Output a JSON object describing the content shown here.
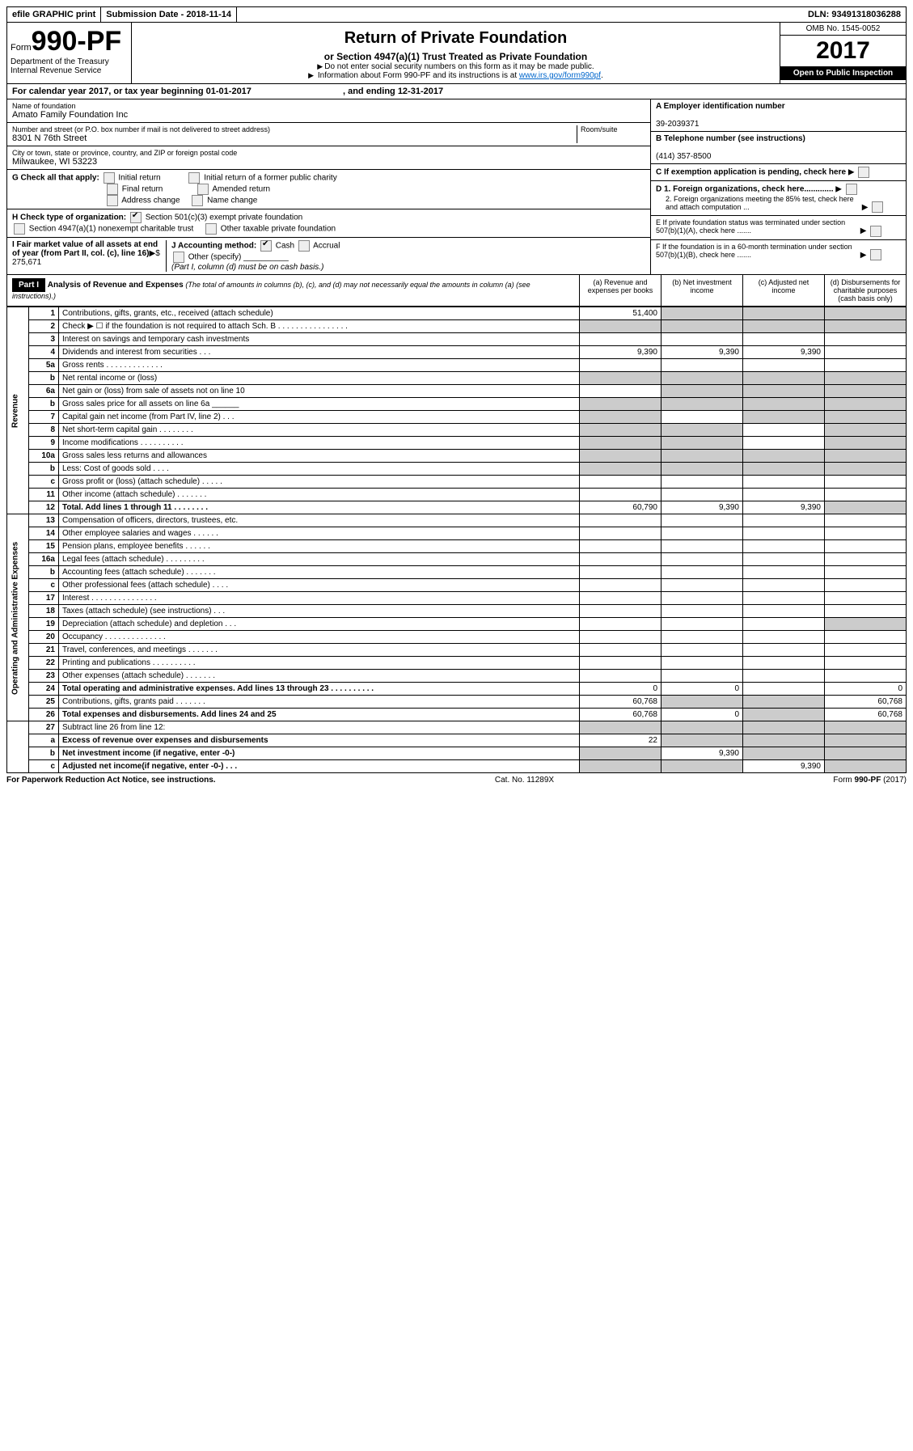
{
  "top": {
    "efile": "efile GRAPHIC print",
    "submission": "Submission Date - 2018-11-14",
    "dln": "DLN: 93491318036288"
  },
  "header": {
    "form_word": "Form",
    "form_no": "990-PF",
    "dept": "Department of the Treasury",
    "irs": "Internal Revenue Service",
    "title": "Return of Private Foundation",
    "sub": "or Section 4947(a)(1) Trust Treated as Private Foundation",
    "note1": "Do not enter social security numbers on this form as it may be made public.",
    "note2_pre": "Information about Form 990-PF and its instructions is at ",
    "note2_link": "www.irs.gov/form990pf",
    "omb": "OMB No. 1545-0052",
    "year": "2017",
    "open": "Open to Public Inspection"
  },
  "cal": "For calendar year 2017, or tax year beginning 01-01-2017",
  "cal_end": ", and ending 12-31-2017",
  "foundation": {
    "name_lbl": "Name of foundation",
    "name": "Amato Family Foundation Inc",
    "addr_lbl": "Number and street (or P.O. box number if mail is not delivered to street address)",
    "addr": "8301 N 76th Street",
    "room_lbl": "Room/suite",
    "city_lbl": "City or town, state or province, country, and ZIP or foreign postal code",
    "city": "Milwaukee, WI  53223"
  },
  "right": {
    "a_lbl": "A Employer identification number",
    "a_val": "39-2039371",
    "b_lbl": "B Telephone number (see instructions)",
    "b_val": "(414) 357-8500",
    "c_lbl": "C If exemption application is pending, check here",
    "d1": "D 1. Foreign organizations, check here.............",
    "d2": "2. Foreign organizations meeting the 85% test, check here and attach computation ...",
    "e": "E  If private foundation status was terminated under section 507(b)(1)(A), check here .......",
    "f": "F  If the foundation is in a 60-month termination under section 507(b)(1)(B), check here .......",
    "h_lbl": "H Check type of organization:",
    "h1": "Section 501(c)(3) exempt private foundation",
    "h2": "Section 4947(a)(1) nonexempt charitable trust",
    "h3": "Other taxable private foundation",
    "g_lbl": "G Check all that apply:",
    "g_opts": {
      "initial": "Initial return",
      "initial_former": "Initial return of a former public charity",
      "final": "Final return",
      "amended": "Amended return",
      "addr_change": "Address change",
      "name_change": "Name change"
    },
    "i_lbl": "I Fair market value of all assets at end of year (from Part II, col. (c), line 16)",
    "i_val": "$  275,671",
    "j_lbl": "J Accounting method:",
    "j_cash": "Cash",
    "j_accrual": "Accrual",
    "j_other": "Other (specify)",
    "j_note": "(Part I, column (d) must be on cash basis.)"
  },
  "part1": {
    "hdr": "Part I",
    "title": "Analysis of Revenue and Expenses",
    "note": "(The total of amounts in columns (b), (c), and (d) may not necessarily equal the amounts in column (a) (see instructions).)",
    "col_a": "(a)   Revenue and expenses per books",
    "col_b": "(b)  Net investment income",
    "col_c": "(c)  Adjusted net income",
    "col_d": "(d)  Disbursements for charitable purposes (cash basis only)"
  },
  "rev_label": "Revenue",
  "exp_label": "Operating and Administrative Expenses",
  "rows": {
    "r1": {
      "n": "1",
      "desc": "Contributions, gifts, grants, etc., received (attach schedule)",
      "a": "51,400"
    },
    "r2": {
      "n": "2",
      "desc": "Check ▶ ☐ if the foundation is not required to attach Sch. B    .  .  .  .  .  .  .  .  .  .  .  .  .  .  .  ."
    },
    "r3": {
      "n": "3",
      "desc": "Interest on savings and temporary cash investments"
    },
    "r4": {
      "n": "4",
      "desc": "Dividends and interest from securities   .  .  .",
      "a": "9,390",
      "b": "9,390",
      "c": "9,390"
    },
    "r5a": {
      "n": "5a",
      "desc": "Gross rents  .  .  .  .  .  .  .  .  .  .  .  .  ."
    },
    "r5b": {
      "n": "b",
      "desc": "Net rental income or (loss)"
    },
    "r6a": {
      "n": "6a",
      "desc": "Net gain or (loss) from sale of assets not on line 10"
    },
    "r6b": {
      "n": "b",
      "desc": "Gross sales price for all assets on line 6a ______"
    },
    "r7": {
      "n": "7",
      "desc": "Capital gain net income (from Part IV, line 2)  .  .  ."
    },
    "r8": {
      "n": "8",
      "desc": "Net short-term capital gain  .  .  .  .  .  .  .  ."
    },
    "r9": {
      "n": "9",
      "desc": "Income modifications  .  .  .  .  .  .  .  .  .  ."
    },
    "r10a": {
      "n": "10a",
      "desc": "Gross sales less returns and allowances"
    },
    "r10b": {
      "n": "b",
      "desc": "Less: Cost of goods sold  .  .  .  ."
    },
    "r10c": {
      "n": "c",
      "desc": "Gross profit or (loss) (attach schedule)  .  .  .  .  ."
    },
    "r11": {
      "n": "11",
      "desc": "Other income (attach schedule)  .  .  .  .  .  .  ."
    },
    "r12": {
      "n": "12",
      "desc": "Total. Add lines 1 through 11  .  .  .  .  .  .  .  .",
      "a": "60,790",
      "b": "9,390",
      "c": "9,390",
      "bold": true
    },
    "r13": {
      "n": "13",
      "desc": "Compensation of officers, directors, trustees, etc."
    },
    "r14": {
      "n": "14",
      "desc": "Other employee salaries and wages  .  .  .  .  .  ."
    },
    "r15": {
      "n": "15",
      "desc": "Pension plans, employee benefits  .  .  .  .  .  ."
    },
    "r16a": {
      "n": "16a",
      "desc": "Legal fees (attach schedule)  .  .  .  .  .  .  .  .  ."
    },
    "r16b": {
      "n": "b",
      "desc": "Accounting fees (attach schedule)  .  .  .  .  .  .  ."
    },
    "r16c": {
      "n": "c",
      "desc": "Other professional fees (attach schedule)  .  .  .  ."
    },
    "r17": {
      "n": "17",
      "desc": "Interest  .  .  .  .  .  .  .  .  .  .  .  .  .  .  ."
    },
    "r18": {
      "n": "18",
      "desc": "Taxes (attach schedule) (see instructions)   .  .  ."
    },
    "r19": {
      "n": "19",
      "desc": "Depreciation (attach schedule) and depletion  .  .  ."
    },
    "r20": {
      "n": "20",
      "desc": "Occupancy  .  .  .  .  .  .  .  .  .  .  .  .  .  ."
    },
    "r21": {
      "n": "21",
      "desc": "Travel, conferences, and meetings  .  .  .  .  .  .  ."
    },
    "r22": {
      "n": "22",
      "desc": "Printing and publications  .  .  .  .  .  .  .  .  .  ."
    },
    "r23": {
      "n": "23",
      "desc": "Other expenses (attach schedule)  .  .  .  .  .  .  ."
    },
    "r24": {
      "n": "24",
      "desc": "Total operating and administrative expenses. Add lines 13 through 23  .  .  .  .  .  .  .  .  .  .",
      "a": "0",
      "b": "0",
      "d": "0",
      "bold": true
    },
    "r25": {
      "n": "25",
      "desc": "Contributions, gifts, grants paid  .  .  .  .  .  .  .",
      "a": "60,768",
      "d": "60,768"
    },
    "r26": {
      "n": "26",
      "desc": "Total expenses and disbursements. Add lines 24 and 25",
      "a": "60,768",
      "b": "0",
      "d": "60,768",
      "bold": true
    },
    "r27": {
      "n": "27",
      "desc": "Subtract line 26 from line 12:"
    },
    "r27a": {
      "n": "a",
      "desc": "Excess of revenue over expenses and disbursements",
      "a": "22",
      "bold": true
    },
    "r27b": {
      "n": "b",
      "desc": "Net investment income (if negative, enter -0-)",
      "b": "9,390",
      "bold": true
    },
    "r27c": {
      "n": "c",
      "desc": "Adjusted net income(if negative, enter -0-)  .  .  .",
      "c": "9,390",
      "bold": true
    }
  },
  "footer": {
    "left": "For Paperwork Reduction Act Notice, see instructions.",
    "center": "Cat. No. 11289X",
    "right": "Form 990-PF (2017)"
  }
}
